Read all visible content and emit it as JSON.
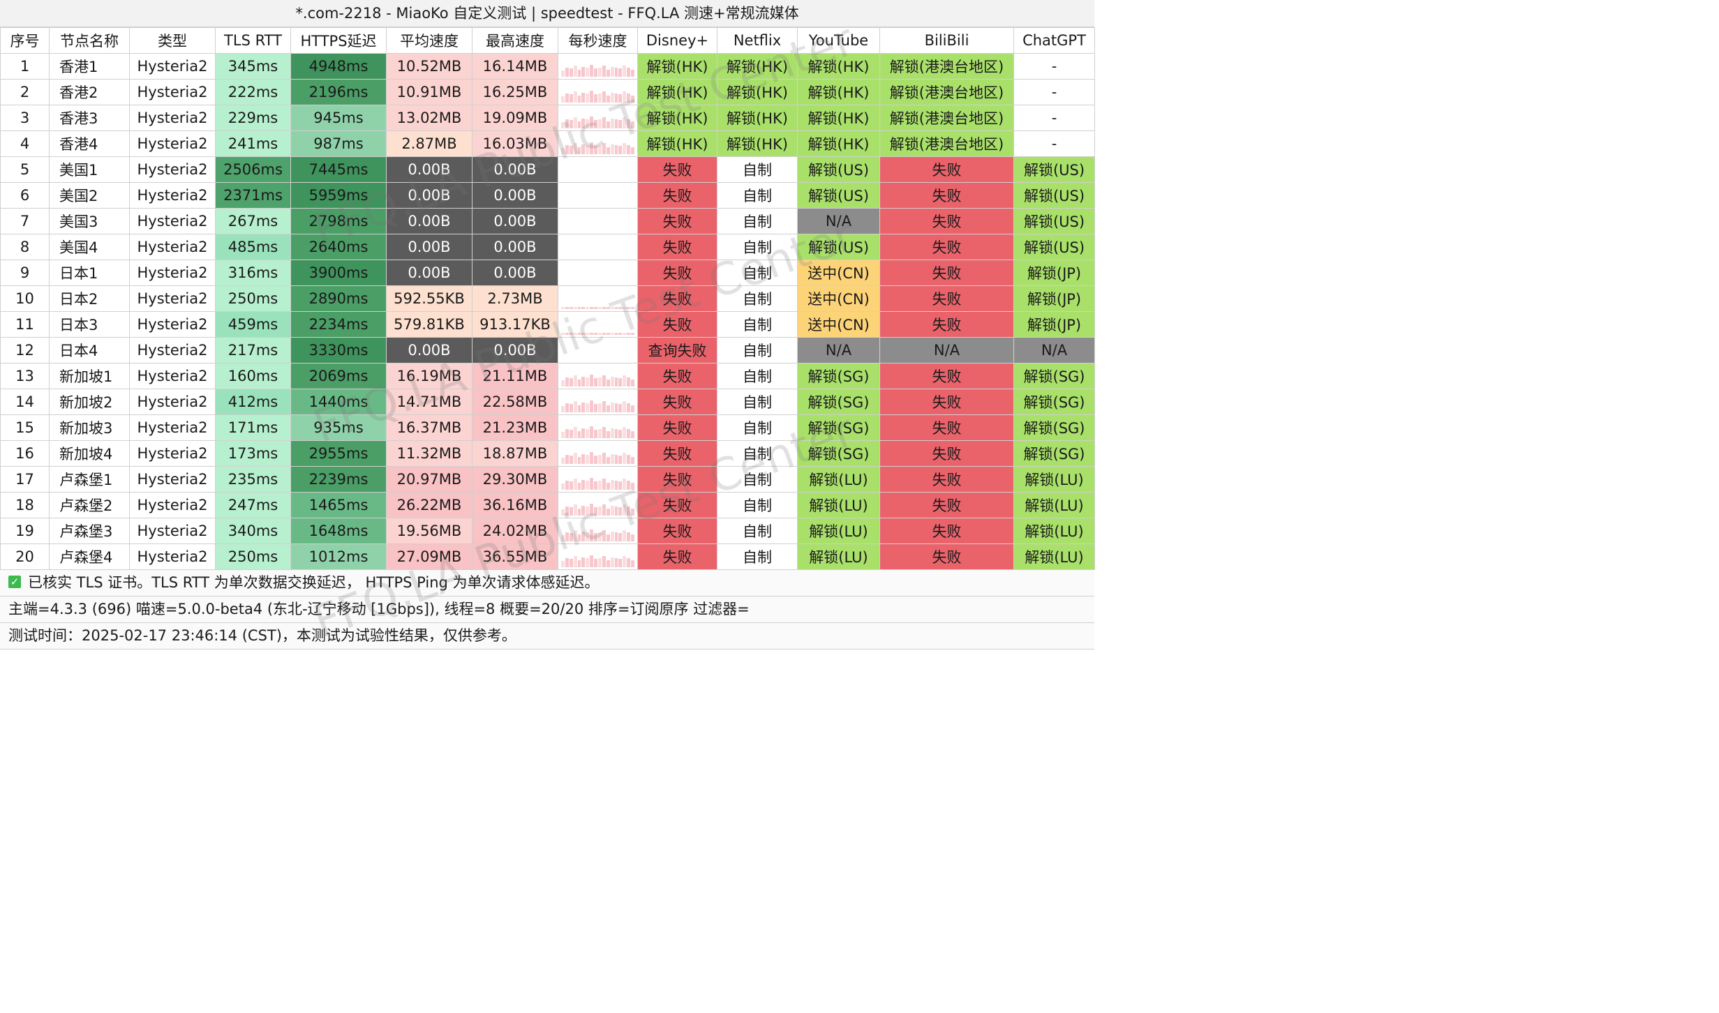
{
  "window": {
    "title": "*.com-2218 - MiaoKo 自定义测试 | speedtest - FFQ.LA 测速+常规流媒体"
  },
  "table": {
    "headers": [
      "序号",
      "节点名称",
      "类型",
      "TLS RTT",
      "HTTPS延迟",
      "平均速度",
      "最高速度",
      "每秒速度",
      "Disney+",
      "Netflix",
      "YouTube",
      "BiliBili",
      "ChatGPT"
    ],
    "rows": [
      {
        "no": "1",
        "name": "香港1",
        "type": "Hysteria2",
        "tls": "345ms",
        "https": "4948ms",
        "avg": "10.52MB",
        "max": "16.14MB",
        "disney": "解锁(HK)",
        "netflix": "解锁(HK)",
        "youtube": "解锁(HK)",
        "bili": "解锁(港澳台地区)",
        "gpt": "-"
      },
      {
        "no": "2",
        "name": "香港2",
        "type": "Hysteria2",
        "tls": "222ms",
        "https": "2196ms",
        "avg": "10.91MB",
        "max": "16.25MB",
        "disney": "解锁(HK)",
        "netflix": "解锁(HK)",
        "youtube": "解锁(HK)",
        "bili": "解锁(港澳台地区)",
        "gpt": "-"
      },
      {
        "no": "3",
        "name": "香港3",
        "type": "Hysteria2",
        "tls": "229ms",
        "https": "945ms",
        "avg": "13.02MB",
        "max": "19.09MB",
        "disney": "解锁(HK)",
        "netflix": "解锁(HK)",
        "youtube": "解锁(HK)",
        "bili": "解锁(港澳台地区)",
        "gpt": "-"
      },
      {
        "no": "4",
        "name": "香港4",
        "type": "Hysteria2",
        "tls": "241ms",
        "https": "987ms",
        "avg": "2.87MB",
        "max": "16.03MB",
        "disney": "解锁(HK)",
        "netflix": "解锁(HK)",
        "youtube": "解锁(HK)",
        "bili": "解锁(港澳台地区)",
        "gpt": "-"
      },
      {
        "no": "5",
        "name": "美国1",
        "type": "Hysteria2",
        "tls": "2506ms",
        "https": "7445ms",
        "avg": "0.00B",
        "max": "0.00B",
        "disney": "失败",
        "netflix": "自制",
        "youtube": "解锁(US)",
        "bili": "失败",
        "gpt": "解锁(US)"
      },
      {
        "no": "6",
        "name": "美国2",
        "type": "Hysteria2",
        "tls": "2371ms",
        "https": "5959ms",
        "avg": "0.00B",
        "max": "0.00B",
        "disney": "失败",
        "netflix": "自制",
        "youtube": "解锁(US)",
        "bili": "失败",
        "gpt": "解锁(US)"
      },
      {
        "no": "7",
        "name": "美国3",
        "type": "Hysteria2",
        "tls": "267ms",
        "https": "2798ms",
        "avg": "0.00B",
        "max": "0.00B",
        "disney": "失败",
        "netflix": "自制",
        "youtube": "N/A",
        "bili": "失败",
        "gpt": "解锁(US)"
      },
      {
        "no": "8",
        "name": "美国4",
        "type": "Hysteria2",
        "tls": "485ms",
        "https": "2640ms",
        "avg": "0.00B",
        "max": "0.00B",
        "disney": "失败",
        "netflix": "自制",
        "youtube": "解锁(US)",
        "bili": "失败",
        "gpt": "解锁(US)"
      },
      {
        "no": "9",
        "name": "日本1",
        "type": "Hysteria2",
        "tls": "316ms",
        "https": "3900ms",
        "avg": "0.00B",
        "max": "0.00B",
        "disney": "失败",
        "netflix": "自制",
        "youtube": "送中(CN)",
        "bili": "失败",
        "gpt": "解锁(JP)"
      },
      {
        "no": "10",
        "name": "日本2",
        "type": "Hysteria2",
        "tls": "250ms",
        "https": "2890ms",
        "avg": "592.55KB",
        "max": "2.73MB",
        "disney": "失败",
        "netflix": "自制",
        "youtube": "送中(CN)",
        "bili": "失败",
        "gpt": "解锁(JP)"
      },
      {
        "no": "11",
        "name": "日本3",
        "type": "Hysteria2",
        "tls": "459ms",
        "https": "2234ms",
        "avg": "579.81KB",
        "max": "913.17KB",
        "disney": "失败",
        "netflix": "自制",
        "youtube": "送中(CN)",
        "bili": "失败",
        "gpt": "解锁(JP)"
      },
      {
        "no": "12",
        "name": "日本4",
        "type": "Hysteria2",
        "tls": "217ms",
        "https": "3330ms",
        "avg": "0.00B",
        "max": "0.00B",
        "disney": "查询失败",
        "netflix": "自制",
        "youtube": "N/A",
        "bili": "N/A",
        "gpt": "N/A"
      },
      {
        "no": "13",
        "name": "新加坡1",
        "type": "Hysteria2",
        "tls": "160ms",
        "https": "2069ms",
        "avg": "16.19MB",
        "max": "21.11MB",
        "disney": "失败",
        "netflix": "自制",
        "youtube": "解锁(SG)",
        "bili": "失败",
        "gpt": "解锁(SG)"
      },
      {
        "no": "14",
        "name": "新加坡2",
        "type": "Hysteria2",
        "tls": "412ms",
        "https": "1440ms",
        "avg": "14.71MB",
        "max": "22.58MB",
        "disney": "失败",
        "netflix": "自制",
        "youtube": "解锁(SG)",
        "bili": "失败",
        "gpt": "解锁(SG)"
      },
      {
        "no": "15",
        "name": "新加坡3",
        "type": "Hysteria2",
        "tls": "171ms",
        "https": "935ms",
        "avg": "16.37MB",
        "max": "21.23MB",
        "disney": "失败",
        "netflix": "自制",
        "youtube": "解锁(SG)",
        "bili": "失败",
        "gpt": "解锁(SG)"
      },
      {
        "no": "16",
        "name": "新加坡4",
        "type": "Hysteria2",
        "tls": "173ms",
        "https": "2955ms",
        "avg": "11.32MB",
        "max": "18.87MB",
        "disney": "失败",
        "netflix": "自制",
        "youtube": "解锁(SG)",
        "bili": "失败",
        "gpt": "解锁(SG)"
      },
      {
        "no": "17",
        "name": "卢森堡1",
        "type": "Hysteria2",
        "tls": "235ms",
        "https": "2239ms",
        "avg": "20.97MB",
        "max": "29.30MB",
        "disney": "失败",
        "netflix": "自制",
        "youtube": "解锁(LU)",
        "bili": "失败",
        "gpt": "解锁(LU)"
      },
      {
        "no": "18",
        "name": "卢森堡2",
        "type": "Hysteria2",
        "tls": "247ms",
        "https": "1465ms",
        "avg": "26.22MB",
        "max": "36.16MB",
        "disney": "失败",
        "netflix": "自制",
        "youtube": "解锁(LU)",
        "bili": "失败",
        "gpt": "解锁(LU)"
      },
      {
        "no": "19",
        "name": "卢森堡3",
        "type": "Hysteria2",
        "tls": "340ms",
        "https": "1648ms",
        "avg": "19.56MB",
        "max": "24.02MB",
        "disney": "失败",
        "netflix": "自制",
        "youtube": "解锁(LU)",
        "bili": "失败",
        "gpt": "解锁(LU)"
      },
      {
        "no": "20",
        "name": "卢森堡4",
        "type": "Hysteria2",
        "tls": "250ms",
        "https": "1012ms",
        "avg": "27.09MB",
        "max": "36.55MB",
        "disney": "失败",
        "netflix": "自制",
        "youtube": "解锁(LU)",
        "bili": "失败",
        "gpt": "解锁(LU)"
      }
    ]
  },
  "footer": {
    "note": "已核实 TLS 证书。TLS RTT 为单次数据交换延迟， HTTPS Ping 为单次请求体感延迟。",
    "info": "主端=4.3.3 (696) 喵速=5.0.0-beta4 (东北-辽宁移动 [1Gbps]), 线程=8 概要=20/20 排序=订阅原序 过滤器=",
    "time": "测试时间：2025-02-17 23:46:14 (CST)，本测试为试验性结果，仅供参考。"
  },
  "watermark": "FFQ.LA Public Test Center",
  "colors": {
    "unlock": "#a9e06a",
    "fail": "#ea636b",
    "na": "#8c8c8c",
    "cn": "#fdd377",
    "zero_speed": "#5b5b5b",
    "check": "#3dba4e"
  },
  "icons": {
    "check": "check-box-icon"
  }
}
